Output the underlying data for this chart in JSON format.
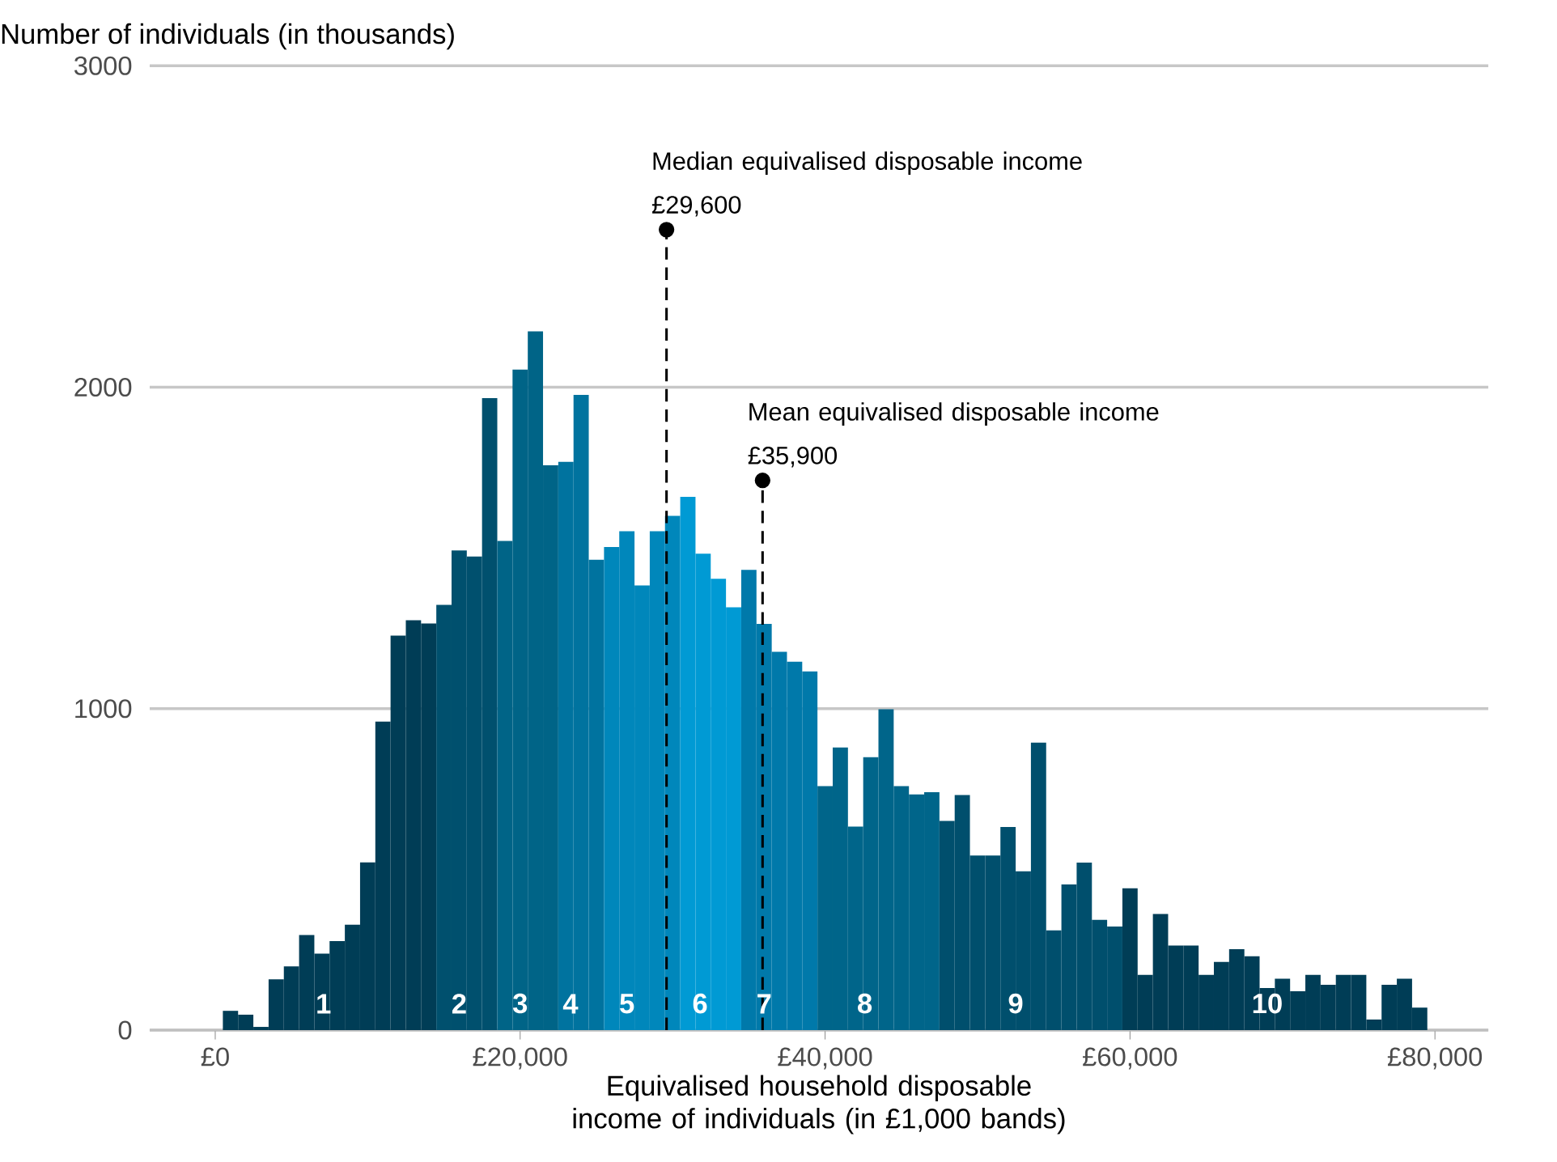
{
  "chart_data": {
    "type": "histogram",
    "xlabel": "Equivalised household disposable income of individuals (in £1,000 bands)",
    "ylabel": "Number of individuals (in thousands)",
    "bins": [
      500,
      1500,
      2500,
      3500,
      4500,
      5500,
      6500,
      7500,
      8500,
      9500,
      10500,
      11500,
      12500,
      13500,
      14500,
      15500,
      16500,
      17500,
      18500,
      19500,
      20500,
      21500,
      22500,
      23500,
      24500,
      25500,
      26500,
      27500,
      28500,
      29500,
      30500,
      31500,
      32500,
      33500,
      34500,
      35500,
      36500,
      37500,
      38500,
      39500,
      40500,
      41500,
      42500,
      43500,
      44500,
      45500,
      46500,
      47500,
      48500,
      49500,
      50500,
      51500,
      52500,
      53500,
      54500,
      55500,
      56500,
      57500,
      58500,
      59500,
      60500,
      61500,
      62500,
      63500,
      64500,
      65500,
      66500,
      67500,
      68500,
      69500,
      70500,
      71500,
      72500,
      73500,
      74500,
      75500,
      76500,
      77500,
      78500,
      79500
    ],
    "values": [
      60,
      48,
      10,
      158,
      198,
      296,
      238,
      277,
      328,
      522,
      960,
      1227,
      1275,
      1265,
      1323,
      1492,
      1473,
      1966,
      1522,
      2055,
      2174,
      1757,
      1768,
      1976,
      1463,
      1503,
      1552,
      1383,
      1552,
      1600,
      1659,
      1482,
      1404,
      1315,
      1432,
      1264,
      1177,
      1146,
      1116,
      759,
      879,
      633,
      849,
      998,
      759,
      733,
      740,
      651,
      731,
      543,
      543,
      632,
      494,
      894,
      310,
      453,
      521,
      343,
      322,
      441,
      172,
      361,
      263,
      263,
      172,
      212,
      252,
      230,
      131,
      160,
      121,
      172,
      141,
      172,
      172,
      33,
      141,
      160,
      70
    ],
    "colors": [
      "#003d56",
      "#003d56",
      "#003d56",
      "#003d56",
      "#003d56",
      "#003d56",
      "#003d56",
      "#003d56",
      "#003d56",
      "#003d56",
      "#003d56",
      "#003d56",
      "#003d56",
      "#003d56",
      "#00506e",
      "#00506e",
      "#00506e",
      "#00506e",
      "#006487",
      "#006487",
      "#006487",
      "#006487",
      "#00739f",
      "#00739f",
      "#00739f",
      "#0087bb",
      "#0087bb",
      "#0087bb",
      "#0087bb",
      "#0087bb",
      "#009ad4",
      "#009ad4",
      "#009ad4",
      "#009ad4",
      "#0079aa",
      "#0079aa",
      "#0079aa",
      "#0079aa",
      "#0079aa",
      "#00658a",
      "#00658a",
      "#00658a",
      "#00658a",
      "#00658a",
      "#00658a",
      "#00658a",
      "#00658a",
      "#004f6d",
      "#004f6d",
      "#004f6d",
      "#004f6d",
      "#004f6d",
      "#004f6d",
      "#004f6d",
      "#004f6d",
      "#004f6d",
      "#004f6d",
      "#004f6d",
      "#004f6d",
      "#003d56",
      "#003d56",
      "#003d56",
      "#003d56",
      "#003d56",
      "#003d56",
      "#003d56",
      "#003d56",
      "#003d56",
      "#003d56",
      "#003d56",
      "#003d56",
      "#003d56",
      "#003d56",
      "#003d56",
      "#003d56",
      "#003d56",
      "#003d56",
      "#003d56",
      "#003d56"
    ],
    "xlim": [
      -4300,
      83500
    ],
    "ylim": [
      0,
      3000
    ],
    "xticks": [
      {
        "value": 0,
        "label": "£0"
      },
      {
        "value": 20000,
        "label": "£20,000"
      },
      {
        "value": 40000,
        "label": "£40,000"
      },
      {
        "value": 60000,
        "label": "£60,000"
      },
      {
        "value": 80000,
        "label": "£80,000"
      }
    ],
    "yticks": [
      0,
      1000,
      2000,
      3000
    ],
    "grid": "y",
    "series": [
      {
        "type": "scatter",
        "x": [
          29600,
          35900
        ],
        "values": [
          2490,
          1710
        ],
        "color": "#000000",
        "marker": "circle"
      }
    ],
    "ref_lines": [
      {
        "axis": "x",
        "value": 29600,
        "label": "Median equivalised disposable income £29,600",
        "color": "#000000",
        "line_style": "dashed"
      },
      {
        "axis": "x",
        "value": 35900,
        "label": "Mean equivalised disposable income £35,900",
        "color": "#000000",
        "line_style": "dashed"
      }
    ],
    "annotations": [
      {
        "text": "1",
        "x": 7100,
        "y": 50
      },
      {
        "text": "2",
        "x": 16000,
        "y": 50
      },
      {
        "text": "3",
        "x": 20000,
        "y": 50
      },
      {
        "text": "4",
        "x": 23300,
        "y": 50
      },
      {
        "text": "5",
        "x": 27000,
        "y": 50
      },
      {
        "text": "6",
        "x": 31800,
        "y": 50
      },
      {
        "text": "7",
        "x": 36000,
        "y": 50
      },
      {
        "text": "8",
        "x": 42600,
        "y": 50
      },
      {
        "text": "9",
        "x": 52500,
        "y": 50
      },
      {
        "text": "10",
        "x": 69000,
        "y": 50
      }
    ]
  }
}
